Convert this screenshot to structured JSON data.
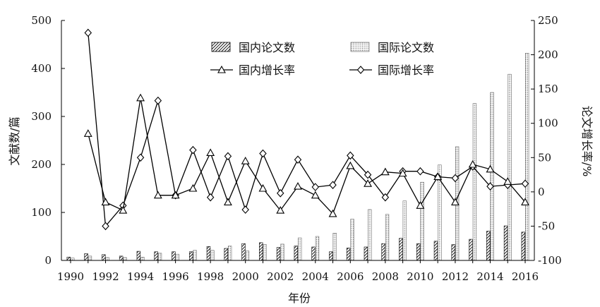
{
  "chart_data": {
    "type": "bar",
    "title": "",
    "xlabel": "年份",
    "ylabel": "文献数/篇",
    "y2label": "论文增长率/%",
    "ylim": [
      0,
      500
    ],
    "y2lim": [
      -100,
      250
    ],
    "x_tick_labels": [
      "1990",
      "1992",
      "1994",
      "1996",
      "1998",
      "2000",
      "2002",
      "2004",
      "2006",
      "2008",
      "2010",
      "2012",
      "2014",
      "2016"
    ],
    "y_tick_labels": [
      "0",
      "100",
      "200",
      "300",
      "400",
      "500"
    ],
    "y2_tick_labels": [
      "-100",
      "-50",
      "0",
      "50",
      "100",
      "150",
      "200",
      "250"
    ],
    "categories": [
      "1990",
      "1991",
      "1992",
      "1993",
      "1994",
      "1995",
      "1996",
      "1997",
      "1998",
      "1999",
      "2000",
      "2001",
      "2002",
      "2003",
      "2004",
      "2005",
      "2006",
      "2007",
      "2008",
      "2009",
      "2010",
      "2011",
      "2012",
      "2013",
      "2014",
      "2015",
      "2016"
    ],
    "legend": [
      {
        "name": "国内论文数",
        "kind": "bar-hatch"
      },
      {
        "name": "国际论文数",
        "kind": "bar-dots"
      },
      {
        "name": "国内增长率",
        "kind": "line-triangle"
      },
      {
        "name": "国际增长率",
        "kind": "line-diamond"
      }
    ],
    "series": [
      {
        "name": "国内论文数",
        "axis": "left",
        "values": [
          7,
          14,
          12,
          9,
          19,
          18,
          18,
          18,
          29,
          25,
          35,
          37,
          27,
          30,
          28,
          18,
          26,
          28,
          35,
          46,
          35,
          40,
          33,
          44,
          61,
          72,
          59
        ]
      },
      {
        "name": "国际论文数",
        "axis": "left",
        "values": [
          5,
          9,
          6,
          6,
          7,
          15,
          13,
          21,
          21,
          30,
          20,
          33,
          34,
          47,
          50,
          57,
          86,
          106,
          96,
          124,
          163,
          199,
          237,
          327,
          350,
          388,
          432
        ]
      },
      {
        "name": "国内增长率",
        "axis": "right",
        "values": [
          null,
          85,
          -15,
          -27,
          137,
          -5,
          -5,
          5,
          57,
          -15,
          45,
          5,
          -27,
          8,
          -5,
          -32,
          38,
          12,
          29,
          27,
          -20,
          22,
          -15,
          40,
          33,
          15,
          -15
        ]
      },
      {
        "name": "国际增长率",
        "axis": "right",
        "values": [
          null,
          232,
          -50,
          -20,
          50,
          133,
          -5,
          61,
          -8,
          52,
          -26,
          56,
          -2,
          47,
          7,
          10,
          53,
          25,
          -8,
          30,
          30,
          22,
          20,
          37,
          8,
          10,
          12
        ]
      }
    ],
    "colors": {
      "axis": "#000000",
      "bar_fill": "#ffffff",
      "line": "#000000"
    },
    "grid": false,
    "legend_position": "top-right"
  }
}
